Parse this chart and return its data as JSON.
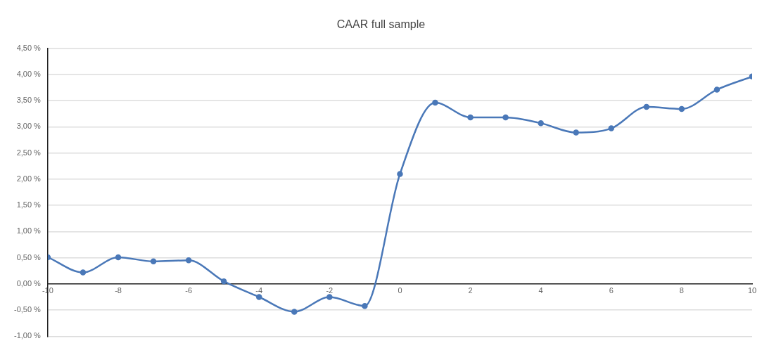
{
  "chart_data": {
    "type": "line",
    "title": "CAAR full sample",
    "x": [
      -10,
      -9,
      -8,
      -7,
      -6,
      -5,
      -4,
      -3,
      -2,
      -1,
      0,
      1,
      2,
      3,
      4,
      5,
      6,
      7,
      8,
      9,
      10
    ],
    "series": [
      {
        "color": "#4a78b8",
        "values": [
          0.51,
          0.22,
          0.51,
          0.43,
          0.45,
          0.05,
          -0.25,
          -0.53,
          -0.25,
          -0.42,
          2.1,
          3.46,
          3.18,
          3.18,
          3.07,
          2.89,
          2.97,
          3.38,
          3.34,
          3.71,
          3.96
        ]
      }
    ],
    "xlim": [
      -10,
      10
    ],
    "xticks": [
      -10,
      -8,
      -6,
      -4,
      -2,
      0,
      2,
      4,
      6,
      8,
      10
    ],
    "ylim": [
      -1,
      4.5
    ],
    "yticks": [
      {
        "value": -1,
        "label": "-1,00 %"
      },
      {
        "value": -0.5,
        "label": "-0,50 %"
      },
      {
        "value": 0,
        "label": "0,00 %"
      },
      {
        "value": 0.5,
        "label": "0,50 %"
      },
      {
        "value": 1,
        "label": "1,00 %"
      },
      {
        "value": 1.5,
        "label": "1,50 %"
      },
      {
        "value": 2,
        "label": "2,00 %"
      },
      {
        "value": 2.5,
        "label": "2,50 %"
      },
      {
        "value": 3,
        "label": "3,00 %"
      },
      {
        "value": 3.5,
        "label": "3,50 %"
      },
      {
        "value": 4,
        "label": "4,00 %"
      },
      {
        "value": 4.5,
        "label": "4,50 %"
      }
    ],
    "grid": "y",
    "legend": false,
    "marker": "circle",
    "line_style": "solid"
  }
}
